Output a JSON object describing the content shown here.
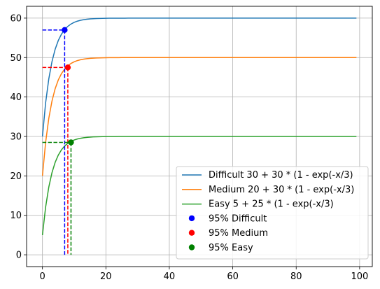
{
  "chart_data": {
    "type": "line",
    "xlim": [
      -5,
      104
    ],
    "ylim": [
      -3,
      63
    ],
    "grid": true,
    "legend_placement": "lower-right",
    "x_ticks": [
      0,
      20,
      40,
      60,
      80,
      100
    ],
    "y_ticks": [
      0,
      10,
      20,
      30,
      40,
      50,
      60
    ],
    "x_tick_labels": [
      "0",
      "20",
      "40",
      "60",
      "80",
      "100"
    ],
    "y_tick_labels": [
      "0",
      "10",
      "20",
      "30",
      "40",
      "50",
      "60"
    ],
    "x_range": [
      0,
      99
    ],
    "series": [
      {
        "name": "Difficult 30 + 30 * (1 - exp(-x/3)",
        "color": "#1f77b4",
        "base": 30,
        "amplitude": 30,
        "tau": 3
      },
      {
        "name": "Medium 20 + 30 * (1 - exp(-x/3)",
        "color": "#ff7f0e",
        "base": 20,
        "amplitude": 30,
        "tau": 3
      },
      {
        "name": "Easy 5 + 25 * (1 - exp(-x/3)",
        "color": "#2ca02c",
        "base": 5,
        "amplitude": 25,
        "tau": 3
      }
    ],
    "markers": [
      {
        "name": "95% Difficult",
        "color": "#0000ff",
        "x": 7,
        "y": 57
      },
      {
        "name": "95% Medium",
        "color": "#ff0000",
        "x": 8,
        "y": 47.5
      },
      {
        "name": "95% Easy",
        "color": "#008000",
        "x": 9,
        "y": 28.5
      }
    ]
  }
}
